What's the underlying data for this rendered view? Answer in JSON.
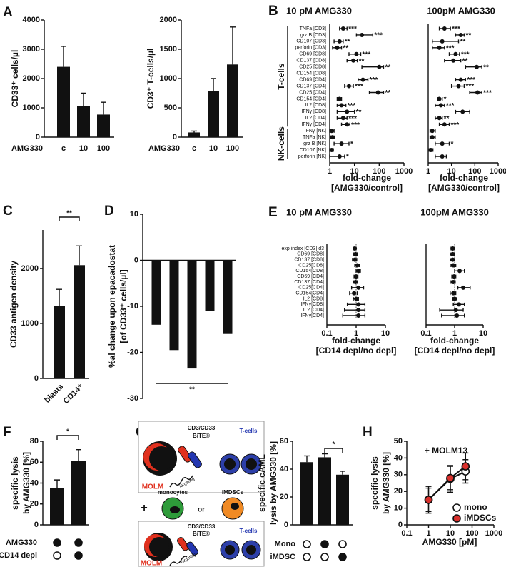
{
  "chart_data": [
    {
      "type": "bar",
      "panel": "A",
      "ylabel": [
        "CD33⁺ cells/µl"
      ],
      "row_label": "AMG330",
      "categories": [
        "c",
        "10",
        "100"
      ],
      "values": [
        2400,
        1050,
        770
      ],
      "errors": [
        700,
        450,
        420
      ],
      "ylim": [
        0,
        4000
      ],
      "yticks": [
        0,
        1000,
        2000,
        3000,
        4000
      ],
      "color": "#111111"
    },
    {
      "type": "bar",
      "ylabel": [
        "CD3⁺ T-cells/µl"
      ],
      "row_label": "AMG330",
      "categories": [
        "c",
        "10",
        "100"
      ],
      "values": [
        80,
        790,
        1240
      ],
      "errors": [
        25,
        210,
        640
      ],
      "ylim": [
        0,
        2000
      ],
      "yticks": [
        0,
        500,
        1000,
        1500,
        2000
      ],
      "color": "#111111"
    },
    {
      "type": "forest",
      "panel": "B",
      "title": "10 pM AMG330",
      "groups": [
        "T-cells",
        "NK-cells"
      ],
      "categories": [
        "TNFa [CD3]",
        "grz B [CD3]",
        "CD107 [CD3]",
        "perforin [CD3]",
        "CD69 [CD8]",
        "CD137 [CD8]",
        "CD25 [CD8]",
        "CD154 [CD8]",
        "CD69 [CD4]",
        "CD137 [CD4]",
        "CD25 [CD4]",
        "CD154 [CD4]",
        "IL2 [CD8]",
        "IFNγ [CD8]",
        "IL2 [CD4]",
        "IFNγ [CD4]",
        "IFNγ [NK]",
        "TNFa [NK]",
        "grz B [NK]",
        "CD107 [NK]",
        "perforin [NK]"
      ],
      "values": [
        3.5,
        20,
        2.5,
        2,
        12,
        9,
        100,
        null,
        22,
        6,
        90,
        2.5,
        3,
        5,
        3.5,
        5,
        1.2,
        1.3,
        3,
        1.2,
        2.5
      ],
      "ci_low": [
        2.5,
        12,
        1.5,
        1.3,
        6,
        5,
        20,
        null,
        14,
        4,
        40,
        2,
        2,
        2,
        2,
        3,
        1,
        1.1,
        1.5,
        1,
        1
      ],
      "ci_high": [
        5,
        55,
        3.5,
        3,
        18,
        13,
        150,
        null,
        35,
        9,
        150,
        3,
        4.5,
        10,
        5,
        6.5,
        1.5,
        1.6,
        6,
        1.4,
        4
      ],
      "significance": [
        "***",
        "***",
        "**",
        "**",
        "***",
        "**",
        "**",
        null,
        "***",
        "***",
        "**",
        null,
        "***",
        "**",
        "***",
        "***",
        null,
        null,
        "*",
        null,
        "*"
      ],
      "xscale": "log",
      "xlim": [
        1,
        1000
      ],
      "xticks": [
        1,
        10,
        100,
        1000
      ],
      "xlabel": [
        "fold-change",
        "[AMG330/control]"
      ],
      "color": "#111111"
    },
    {
      "type": "forest",
      "title": "100pM AMG330",
      "values": [
        5,
        25,
        4,
        3,
        15,
        12,
        120,
        null,
        25,
        20,
        130,
        3,
        3.5,
        30,
        3,
        5,
        1.5,
        1.5,
        4,
        1.3,
        4
      ],
      "ci_low": [
        3,
        15,
        1.5,
        1.5,
        8,
        5,
        40,
        null,
        15,
        10,
        60,
        2.5,
        2,
        15,
        2,
        3,
        1.2,
        1.2,
        2,
        1.1,
        2
      ],
      "ci_high": [
        9,
        35,
        20,
        5,
        22,
        25,
        200,
        null,
        40,
        35,
        200,
        4,
        5,
        60,
        4,
        8,
        2,
        2,
        8,
        1.6,
        6
      ],
      "significance": [
        "***",
        "**",
        "**",
        "***",
        "***",
        "**",
        "**",
        null,
        "***",
        "***",
        "***",
        "*",
        "***",
        null,
        "**",
        "***",
        null,
        null,
        "*",
        null,
        null
      ],
      "xscale": "log",
      "xlim": [
        1,
        1000
      ],
      "xticks": [
        1,
        10,
        100,
        1000
      ],
      "xlabel": [
        "fold-change",
        "[AMG330/control]"
      ],
      "color": "#111111"
    },
    {
      "type": "bar",
      "panel": "C",
      "ylabel": [
        "CD33 antigen density"
      ],
      "categories": [
        "blasts",
        "CD14⁺"
      ],
      "values": [
        1320,
        2060
      ],
      "errors": [
        300,
        350
      ],
      "ylim": [
        0,
        2700
      ],
      "yticks": [
        0,
        1000,
        2000
      ],
      "significance": "**",
      "color": "#111111"
    },
    {
      "type": "bar",
      "panel": "D",
      "ylabel": [
        "%al change upon epacadostat",
        "[of CD33⁺ cells/µl]"
      ],
      "values": [
        -14,
        -19.5,
        -23.5,
        -11,
        -16
      ],
      "ylim": [
        -30,
        10
      ],
      "yticks": [
        -30,
        -20,
        -10,
        0,
        10
      ],
      "significance": "**",
      "color": "#111111"
    },
    {
      "type": "forest",
      "panel": "E",
      "title": "10 pM AMG330",
      "categories": [
        "exp index [CD3] d3",
        "CD69 [CD8]",
        "CD137 [CD8]",
        "CD25[CD8]",
        "CD154[CD8]",
        "CD69 [CD4]",
        "CD137 [CD4]",
        "CD25[CD4]",
        "CD154[CD4]",
        "IL2 [CD8]",
        "IFNγ[CD8]",
        "IL2 [CD4]",
        "IFNγ[CD4]"
      ],
      "values": [
        0.9,
        0.95,
        0.9,
        1.1,
        1.2,
        1.0,
        0.95,
        1.2,
        0.85,
        1.0,
        1.2,
        1.2,
        1.2
      ],
      "ci_low": [
        0.8,
        0.8,
        0.75,
        0.9,
        1.0,
        0.85,
        0.8,
        0.7,
        0.6,
        0.8,
        0.5,
        0.4,
        0.35
      ],
      "ci_high": [
        1.0,
        1.1,
        1.05,
        1.3,
        1.4,
        1.15,
        1.1,
        1.8,
        1.1,
        1.2,
        2.0,
        2.0,
        2.0
      ],
      "reference_line": 1,
      "xscale": "log",
      "xlim": [
        0.1,
        10
      ],
      "xticks": [
        0.1,
        1,
        10
      ],
      "xlabel": [
        "fold-change",
        "[CD14 depl/no depl]"
      ],
      "color": "#111111"
    },
    {
      "type": "forest",
      "title": "100pM AMG330",
      "values": [
        0.85,
        0.85,
        0.85,
        0.9,
        1.5,
        0.95,
        0.9,
        2.0,
        0.9,
        1.0,
        1.4,
        1.1,
        1.2
      ],
      "ci_low": [
        0.75,
        0.7,
        0.7,
        0.75,
        1.0,
        0.8,
        0.75,
        1.3,
        0.7,
        0.85,
        0.9,
        0.3,
        0.35
      ],
      "ci_high": [
        0.95,
        1.0,
        1.0,
        1.1,
        2.2,
        1.1,
        1.05,
        3.5,
        1.1,
        1.2,
        2.2,
        2.0,
        2.2
      ],
      "reference_line": 1,
      "xscale": "log",
      "xlim": [
        0.1,
        10
      ],
      "xticks": [
        0.1,
        1,
        10
      ],
      "xlabel": [
        "fold-change",
        "[CD14 depl/no depl]"
      ],
      "color": "#111111"
    },
    {
      "type": "bar",
      "panel": "F",
      "ylabel": [
        "specific lysis",
        "by AMG330 [%]"
      ],
      "values": [
        35,
        61
      ],
      "errors": [
        8,
        11
      ],
      "ylim": [
        0,
        80
      ],
      "yticks": [
        0,
        20,
        40,
        60,
        80
      ],
      "significance": "*",
      "color": "#111111",
      "design": [
        {
          "name": "AMG330",
          "values": [
            true,
            true
          ]
        },
        {
          "name": "CD14 depl",
          "values": [
            false,
            true
          ]
        }
      ]
    },
    {
      "type": "bar",
      "ylabel": [
        "specific cAML",
        "lysis by AMG330 [%]"
      ],
      "values": [
        45,
        48.5,
        36
      ],
      "errors": [
        4.5,
        2.5,
        2.5
      ],
      "ylim": [
        0,
        60
      ],
      "yticks": [
        0,
        20,
        40,
        60
      ],
      "significance": "*",
      "color": "#111111",
      "design": [
        {
          "name": "Mono",
          "values": [
            false,
            true,
            false
          ]
        },
        {
          "name": "iMDSC",
          "values": [
            false,
            false,
            true
          ]
        }
      ]
    },
    {
      "type": "line",
      "panel": "H",
      "annotation": "+ MOLM13",
      "ylabel": [
        "specific lysis",
        "by AMG330 [%]"
      ],
      "xlabel": "AMG330 [pM]",
      "x": [
        1,
        10,
        50
      ],
      "xscale": "log",
      "xlim": [
        0.1,
        1000
      ],
      "xticks": [
        0.1,
        1,
        10,
        100,
        1000
      ],
      "ylim": [
        0,
        50
      ],
      "yticks": [
        0,
        10,
        20,
        30,
        40,
        50
      ],
      "legend": "lower right",
      "series": [
        {
          "name": "mono",
          "color": "#111111",
          "marker_fill": "#ffffff",
          "values": [
            15,
            27.5,
            32
          ],
          "errors": [
            8,
            8,
            7
          ]
        },
        {
          "name": "iMDSCs",
          "color": "#111111",
          "marker_fill": "#d9302c",
          "values": [
            15,
            28,
            35
          ],
          "errors": [
            7,
            7,
            8
          ]
        }
      ]
    }
  ],
  "diagram": {
    "panel": "G",
    "top": {
      "bite": "CD3/CD33",
      "bite_name": "BiTE®",
      "effector": "T-cells",
      "target": "MOLM",
      "arrow": "targeting"
    },
    "middle": {
      "plus": "+",
      "left": "monocytes",
      "or": "or",
      "right": "iMDSCs"
    },
    "bottom": {
      "bite": "CD3/CD33",
      "bite_name": "BiTE®",
      "effector": "T-cells",
      "target": "MOLM",
      "arrow": "targeting"
    }
  }
}
